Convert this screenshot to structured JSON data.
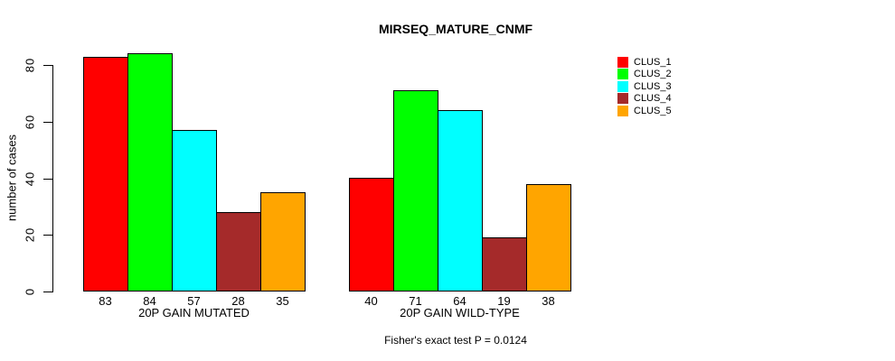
{
  "chart_data": {
    "type": "bar",
    "title": "MIRSEQ_MATURE_CNMF",
    "ylabel": "number of cases",
    "ylim": [
      0,
      84
    ],
    "yticks": [
      0,
      20,
      40,
      60,
      80
    ],
    "grid": false,
    "legend_position": "top-right",
    "series_names": [
      "CLUS_1",
      "CLUS_2",
      "CLUS_3",
      "CLUS_4",
      "CLUS_5"
    ],
    "series_colors": [
      "#ff0000",
      "#00ff00",
      "#00ffff",
      "#a52a2a",
      "#ffa500"
    ],
    "groups": [
      {
        "label": "20P GAIN MUTATED",
        "values": [
          83,
          84,
          57,
          28,
          35
        ]
      },
      {
        "label": "20P GAIN WILD-TYPE",
        "values": [
          40,
          71,
          64,
          19,
          38
        ]
      }
    ],
    "bar_value_labels": true,
    "annotation": "Fisher's exact test P = 0.0124"
  }
}
